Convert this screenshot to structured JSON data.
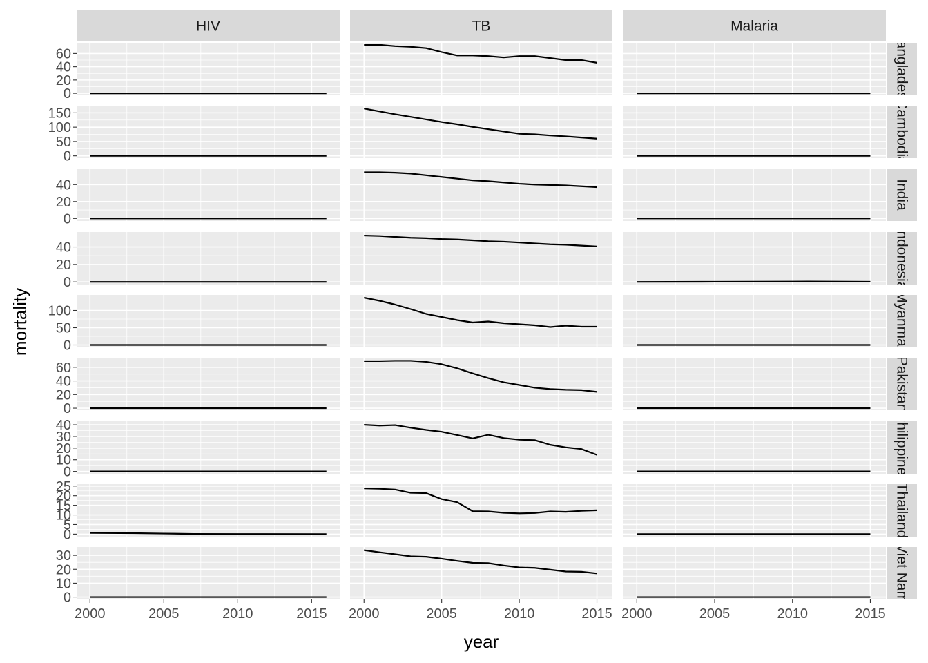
{
  "chart_data": {
    "type": "line",
    "facet_layout": "grid",
    "xlabel": "year",
    "ylabel": "mortality",
    "column_labels": [
      "HIV",
      "TB",
      "Malaria"
    ],
    "row_labels": [
      "Bangladesh",
      "Cambodia",
      "India",
      "Indonesia",
      "Myanmar",
      "Pakistan",
      "Philippines",
      "Thailand",
      "Viet Nam"
    ],
    "x_ticks": [
      2000,
      2005,
      2010,
      2015
    ],
    "column_xlim": [
      [
        1999.1,
        2016.9
      ],
      [
        1999.1,
        2016.0
      ],
      [
        1999.1,
        2016.0
      ]
    ],
    "grid": true,
    "rows": [
      {
        "ylim": [
          -3,
          76
        ],
        "y_ticks": [
          0,
          20,
          40,
          60
        ],
        "hiv": {
          "x": [
            2000,
            2016
          ],
          "y": [
            0,
            0
          ]
        },
        "tb": {
          "x": [
            2000,
            2001,
            2002,
            2003,
            2004,
            2005,
            2006,
            2007,
            2008,
            2009,
            2010,
            2011,
            2012,
            2013,
            2014,
            2015
          ],
          "y": [
            73,
            73,
            71,
            70,
            68,
            62,
            57,
            57,
            56,
            54,
            56,
            56,
            53,
            50,
            50,
            46
          ]
        },
        "malaria": {
          "x": [
            2000,
            2015
          ],
          "y": [
            0,
            0
          ]
        }
      },
      {
        "ylim": [
          -8,
          175
        ],
        "y_ticks": [
          0,
          50,
          100,
          150
        ],
        "hiv": {
          "x": [
            2000,
            2016
          ],
          "y": [
            0,
            0
          ]
        },
        "tb": {
          "x": [
            2000,
            2001,
            2002,
            2003,
            2004,
            2005,
            2006,
            2007,
            2008,
            2009,
            2010,
            2011,
            2012,
            2013,
            2014,
            2015
          ],
          "y": [
            165,
            155,
            145,
            136,
            127,
            118,
            110,
            101,
            93,
            85,
            77,
            75,
            71,
            68,
            64,
            60
          ]
        },
        "malaria": {
          "x": [
            2000,
            2015
          ],
          "y": [
            0,
            0
          ]
        }
      },
      {
        "ylim": [
          -3,
          59
        ],
        "y_ticks": [
          0,
          20,
          40
        ],
        "hiv": {
          "x": [
            2000,
            2016
          ],
          "y": [
            0,
            0
          ]
        },
        "tb": {
          "x": [
            2000,
            2001,
            2002,
            2003,
            2004,
            2005,
            2006,
            2007,
            2008,
            2009,
            2010,
            2011,
            2012,
            2013,
            2014,
            2015
          ],
          "y": [
            54.5,
            54.5,
            54,
            53,
            51,
            49,
            47,
            45,
            44,
            42.5,
            41,
            40,
            39.5,
            39,
            38,
            37
          ]
        },
        "malaria": {
          "x": [
            2000,
            2015
          ],
          "y": [
            0,
            0
          ]
        }
      },
      {
        "ylim": [
          -3,
          57
        ],
        "y_ticks": [
          0,
          20,
          40
        ],
        "hiv": {
          "x": [
            2000,
            2016
          ],
          "y": [
            0,
            0
          ]
        },
        "tb": {
          "x": [
            2000,
            2001,
            2002,
            2003,
            2004,
            2005,
            2006,
            2007,
            2008,
            2009,
            2010,
            2011,
            2012,
            2013,
            2014,
            2015
          ],
          "y": [
            53,
            52.5,
            51.5,
            50.5,
            50,
            49,
            48.5,
            47.5,
            46.5,
            46,
            45,
            44,
            43,
            42.5,
            41.5,
            40.5
          ]
        },
        "malaria": {
          "x": [
            2000,
            2005,
            2010,
            2011,
            2015
          ],
          "y": [
            0,
            0.2,
            0.4,
            0.5,
            0.2
          ]
        }
      },
      {
        "ylim": [
          -7,
          145
        ],
        "y_ticks": [
          0,
          50,
          100
        ],
        "hiv": {
          "x": [
            2000,
            2016
          ],
          "y": [
            0,
            0
          ]
        },
        "tb": {
          "x": [
            2000,
            2001,
            2002,
            2003,
            2004,
            2005,
            2006,
            2007,
            2008,
            2009,
            2010,
            2011,
            2012,
            2013,
            2014,
            2015
          ],
          "y": [
            137,
            128,
            117,
            104,
            90,
            81,
            72,
            65,
            68,
            63,
            60,
            57,
            52,
            56,
            53,
            53
          ]
        },
        "malaria": {
          "x": [
            2000,
            2015
          ],
          "y": [
            0,
            0
          ]
        }
      },
      {
        "ylim": [
          -3,
          74
        ],
        "y_ticks": [
          0,
          20,
          40,
          60
        ],
        "hiv": {
          "x": [
            2000,
            2016
          ],
          "y": [
            0,
            0
          ]
        },
        "tb": {
          "x": [
            2000,
            2001,
            2002,
            2003,
            2004,
            2005,
            2006,
            2007,
            2008,
            2009,
            2010,
            2011,
            2012,
            2013,
            2014,
            2015
          ],
          "y": [
            69,
            69,
            69.5,
            69.5,
            68,
            64.5,
            58.5,
            51,
            44,
            38,
            34,
            30,
            28,
            27,
            26.5,
            24
          ]
        },
        "malaria": {
          "x": [
            2000,
            2015
          ],
          "y": [
            0,
            0
          ]
        }
      },
      {
        "ylim": [
          -2,
          43
        ],
        "y_ticks": [
          0,
          10,
          20,
          30,
          40
        ],
        "hiv": {
          "x": [
            2000,
            2016
          ],
          "y": [
            0,
            0
          ]
        },
        "tb": {
          "x": [
            2000,
            2001,
            2002,
            2003,
            2004,
            2005,
            2006,
            2007,
            2008,
            2009,
            2010,
            2011,
            2012,
            2013,
            2014,
            2015
          ],
          "y": [
            40,
            39.3,
            39.7,
            37.5,
            35.6,
            34,
            31.2,
            28.3,
            31.4,
            28.6,
            27.2,
            26.8,
            22.8,
            20.6,
            19.2,
            14.2
          ]
        },
        "malaria": {
          "x": [
            2000,
            2015
          ],
          "y": [
            0,
            0
          ]
        }
      },
      {
        "ylim": [
          -1.3,
          26
        ],
        "y_ticks": [
          0,
          5,
          10,
          15,
          20,
          25
        ],
        "hiv": {
          "x": [
            2000,
            2003,
            2005,
            2007,
            2010,
            2016
          ],
          "y": [
            0.6,
            0.5,
            0.3,
            0.1,
            0.05,
            0
          ]
        },
        "tb": {
          "x": [
            2000,
            2001,
            2002,
            2003,
            2004,
            2005,
            2006,
            2007,
            2008,
            2009,
            2010,
            2011,
            2012,
            2013,
            2014,
            2015
          ],
          "y": [
            23.8,
            23.6,
            23.2,
            21.5,
            21.3,
            18.2,
            16.6,
            11.9,
            11.8,
            11.1,
            10.8,
            11,
            11.8,
            11.6,
            12.1,
            12.4
          ]
        },
        "malaria": {
          "x": [
            2000,
            2015
          ],
          "y": [
            0,
            0
          ]
        }
      },
      {
        "ylim": [
          -1.7,
          36
        ],
        "y_ticks": [
          0,
          10,
          20,
          30
        ],
        "hiv": {
          "x": [
            2000,
            2016
          ],
          "y": [
            0,
            0
          ]
        },
        "tb": {
          "x": [
            2000,
            2001,
            2002,
            2003,
            2004,
            2005,
            2006,
            2007,
            2008,
            2009,
            2010,
            2011,
            2012,
            2013,
            2014,
            2015
          ],
          "y": [
            33.7,
            32.2,
            30.8,
            29.3,
            29,
            27.6,
            26,
            24.6,
            24.4,
            22.7,
            21.3,
            21,
            19.7,
            18.4,
            18.2,
            17
          ]
        },
        "malaria": {
          "x": [
            2000,
            2015
          ],
          "y": [
            0,
            0
          ]
        }
      }
    ]
  }
}
